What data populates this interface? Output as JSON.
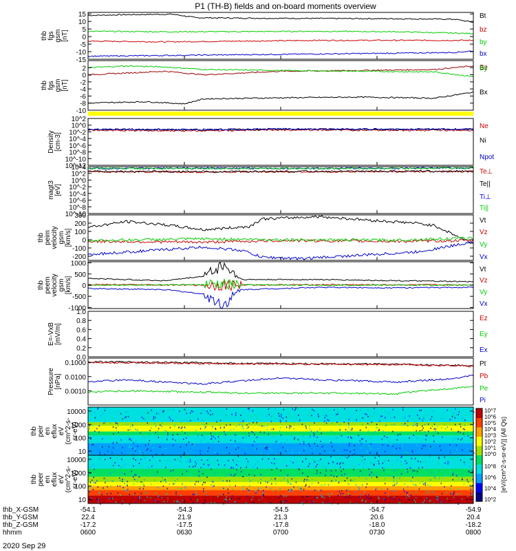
{
  "figure": {
    "title": "P1  (TH-B) fields and on-board moments overview",
    "date_label": "2020 Sep 29"
  },
  "time_axis": {
    "tick_labels": [
      "0600",
      "0630",
      "0700",
      "0730",
      "0800"
    ],
    "rows": [
      {
        "name": "thb_X-GSM",
        "values": [
          "-54.1",
          "-54.3",
          "-54.5",
          "-54.7",
          "-54.9"
        ]
      },
      {
        "name": "thb_Y-GSM",
        "values": [
          "22.4",
          "21.9",
          "21.3",
          "20.6",
          "20.4"
        ]
      },
      {
        "name": "thb_Z-GSM",
        "values": [
          "-17.2",
          "-17.5",
          "-17.8",
          "-18.0",
          "-18.2"
        ]
      },
      {
        "name": "hhmm",
        "values": [
          "0600",
          "0630",
          "0700",
          "0730",
          "0800"
        ]
      }
    ]
  },
  "colorbar": {
    "title": "[eV/(cm^2-s-sr-eV)] (All Qs)",
    "tick_labels_top": [
      "10^7",
      "10^6",
      "10^5",
      "10^4",
      "10^3",
      "10^2",
      "10^1",
      "10^0"
    ],
    "tick_labels_bottom": [
      "10^8",
      "10^6",
      "10^4",
      "10^2"
    ],
    "colors": [
      "#000080",
      "#0000ff",
      "#00a0ff",
      "#00e0e0",
      "#00e060",
      "#a0e000",
      "#ffff00",
      "#ffa000",
      "#ff4000",
      "#c00000"
    ]
  },
  "colors": {
    "black": "#000000",
    "red": "#cc0000",
    "green": "#00cc00",
    "blue": "#0000cc",
    "darkred": "#990000",
    "yellow": "#ffff00"
  },
  "chart_data": [
    {
      "type": "line",
      "ylabel": [
        "thb",
        "fgs",
        "gsm",
        "[nT]"
      ],
      "ylim": [
        -15,
        16
      ],
      "yticks": [
        15,
        10,
        5,
        0,
        -5,
        -10,
        -15
      ],
      "legend": [
        "Bt",
        "bz",
        "by",
        "bx"
      ],
      "series": [
        {
          "name": "Bt",
          "color": "#000000",
          "x": [
            0,
            0.1,
            0.22,
            0.28,
            0.4,
            0.6,
            0.8,
            0.95,
            1
          ],
          "y": [
            14,
            14.5,
            14.8,
            12.5,
            12.2,
            12.0,
            11.8,
            11.5,
            9.5
          ]
        },
        {
          "name": "bz",
          "color": "#cc0000",
          "x": [
            0,
            0.2,
            0.4,
            0.6,
            0.8,
            1
          ],
          "y": [
            -3,
            -3.5,
            -3,
            -2.5,
            -2.5,
            -2.5
          ]
        },
        {
          "name": "by",
          "color": "#00cc00",
          "x": [
            0,
            0.2,
            0.4,
            0.6,
            0.8,
            1
          ],
          "y": [
            3.5,
            3.2,
            3.3,
            3.5,
            3.2,
            2.0
          ]
        },
        {
          "name": "bx",
          "color": "#0000cc",
          "x": [
            0,
            0.2,
            0.4,
            0.6,
            0.8,
            0.95,
            1
          ],
          "y": [
            -13,
            -12.5,
            -12,
            -11.5,
            -11,
            -10.5,
            -9.5
          ]
        }
      ]
    },
    {
      "type": "line",
      "ylabel": [
        "thb",
        "fgs",
        "gsm",
        "[nT]"
      ],
      "ylim": [
        -10,
        4
      ],
      "yticks": [
        2,
        0,
        -2,
        -4,
        -6,
        -8,
        -10
      ],
      "legend": [
        "Bz",
        "By",
        "Bx"
      ],
      "series": [
        {
          "name": "Bz",
          "color": "#990000",
          "x": [
            0,
            0.1,
            0.2,
            0.3,
            0.5,
            0.7,
            0.9,
            1
          ],
          "y": [
            0,
            0.5,
            1,
            0,
            1,
            1.2,
            1.5,
            2.5
          ]
        },
        {
          "name": "By",
          "color": "#00cc00",
          "x": [
            0,
            0.1,
            0.2,
            0.3,
            0.5,
            0.7,
            0.9,
            1
          ],
          "y": [
            2,
            2.5,
            2.2,
            1.5,
            1.2,
            1,
            0.8,
            -0.5
          ]
        },
        {
          "name": "Bx",
          "color": "#000000",
          "x": [
            0,
            0.15,
            0.25,
            0.3,
            0.5,
            0.7,
            0.9,
            1
          ],
          "y": [
            -8,
            -7.6,
            -8.2,
            -6.8,
            -6.5,
            -6.3,
            -6.6,
            -4.9
          ]
        }
      ]
    },
    {
      "type": "line",
      "ylabel": [
        "Density",
        "[cm-3]"
      ],
      "yscale": "log",
      "ylim": [
        1e-12,
        100.0
      ],
      "yticks_labels": [
        "10^2",
        "10^0",
        "10^-2",
        "10^-4",
        "10^-6",
        "10^-8",
        "10^-10",
        "10^-12"
      ],
      "legend": [
        "Ne",
        "Ni",
        "Npot"
      ],
      "series": [
        {
          "name": "Ne",
          "color": "#cc0000",
          "x": [
            0,
            0.3,
            0.5,
            0.8,
            1
          ],
          "y": [
            0.03,
            0.02,
            0.04,
            0.03,
            0.03
          ]
        },
        {
          "name": "Ni",
          "color": "#000000",
          "x": [
            0,
            0.3,
            0.5,
            0.8,
            1
          ],
          "y": [
            0.05,
            0.04,
            0.06,
            0.05,
            0.05
          ]
        },
        {
          "name": "Npot",
          "color": "#0000cc",
          "x": [
            0,
            0.3,
            0.5,
            0.8,
            1
          ],
          "y": [
            0.06,
            0.05,
            0.07,
            0.06,
            0.06
          ]
        }
      ]
    },
    {
      "type": "line",
      "ylabel": [
        "magt3",
        "[eV]"
      ],
      "yscale": "log",
      "ylim": [
        1e-10,
        10000.0
      ],
      "yticks_labels": [
        "10^4",
        "10^2",
        "10^0",
        "10^-2",
        "10^-4",
        "10^-6",
        "10^-8",
        "10^-10"
      ],
      "legend": [
        "Te⊥",
        "Te||",
        "Ti⊥",
        "Ti||"
      ],
      "series": [
        {
          "name": "Te⊥",
          "color": "#cc0000",
          "x": [
            0,
            0.3,
            0.6,
            1
          ],
          "y": [
            300,
            250,
            300,
            350
          ]
        },
        {
          "name": "Te||",
          "color": "#000000",
          "x": [
            0,
            0.3,
            0.6,
            1
          ],
          "y": [
            400,
            350,
            400,
            450
          ]
        },
        {
          "name": "Ti⊥",
          "color": "#0000cc",
          "x": [
            0,
            0.3,
            0.6,
            1
          ],
          "y": [
            3000,
            3500,
            3000,
            4000
          ]
        },
        {
          "name": "Ti||",
          "color": "#00cc00",
          "x": [
            0,
            0.3,
            0.6,
            1
          ],
          "y": [
            2500,
            3000,
            2800,
            3500
          ]
        }
      ]
    },
    {
      "type": "line",
      "ylabel": [
        "thb",
        "peim",
        "velocity",
        "gsm",
        "[km/s]"
      ],
      "ylim": [
        -250,
        300
      ],
      "yticks": [
        300,
        200,
        100,
        0,
        -100,
        -200
      ],
      "legend": [
        "Vt",
        "Vz",
        "Vy",
        "Vx"
      ],
      "series": [
        {
          "name": "Vt",
          "color": "#000000",
          "x": [
            0,
            0.1,
            0.2,
            0.3,
            0.42,
            0.45,
            0.6,
            0.75,
            0.85,
            0.9,
            1
          ],
          "y": [
            150,
            220,
            180,
            120,
            160,
            250,
            280,
            230,
            200,
            170,
            -50
          ]
        },
        {
          "name": "Vz",
          "color": "#cc0000",
          "x": [
            0,
            0.3,
            0.5,
            0.8,
            1
          ],
          "y": [
            -20,
            -30,
            -10,
            -20,
            -10
          ]
        },
        {
          "name": "Vy",
          "color": "#00cc00",
          "x": [
            0,
            0.3,
            0.5,
            0.8,
            1
          ],
          "y": [
            -10,
            10,
            0,
            -5,
            20
          ]
        },
        {
          "name": "Vx",
          "color": "#0000cc",
          "x": [
            0,
            0.1,
            0.2,
            0.3,
            0.4,
            0.45,
            0.55,
            0.7,
            0.85,
            0.95,
            1
          ],
          "y": [
            -180,
            -150,
            -120,
            -90,
            -130,
            -210,
            -230,
            -190,
            -150,
            -70,
            -20
          ]
        }
      ]
    },
    {
      "type": "line",
      "ylabel": [
        "thb",
        "peem",
        "velocity",
        "gsm",
        "[km/s]"
      ],
      "ylim": [
        -1050,
        1050
      ],
      "yticks": [
        1000,
        500,
        0,
        -500,
        -1000
      ],
      "legend": [
        "Vt",
        "Vz",
        "Vy",
        "Vx"
      ],
      "series": [
        {
          "name": "Vt",
          "color": "#000000",
          "x": [
            0,
            0.2,
            0.3,
            0.35,
            0.4,
            0.6,
            0.8,
            1
          ],
          "y": [
            300,
            200,
            400,
            900,
            250,
            250,
            200,
            150
          ]
        },
        {
          "name": "Vz",
          "color": "#cc0000",
          "x": [
            0,
            0.3,
            0.6,
            1
          ],
          "y": [
            30,
            0,
            20,
            10
          ]
        },
        {
          "name": "Vy",
          "color": "#00cc00",
          "x": [
            0,
            0.3,
            0.6,
            1
          ],
          "y": [
            0,
            20,
            0,
            0
          ]
        },
        {
          "name": "Vx",
          "color": "#0000cc",
          "x": [
            0,
            0.2,
            0.3,
            0.35,
            0.4,
            0.6,
            0.8,
            1
          ],
          "y": [
            -150,
            -200,
            -400,
            -900,
            -200,
            -100,
            -120,
            -100
          ]
        }
      ]
    },
    {
      "type": "line",
      "ylabel": [
        "E=-VxB",
        "[mV/m]"
      ],
      "ylim": [
        0,
        1
      ],
      "yticks": [
        1.0,
        0.8,
        0.6,
        0.4,
        0.2,
        0.0
      ],
      "legend": [
        "Ez",
        "Ey",
        "Ex"
      ],
      "series": []
    },
    {
      "type": "line",
      "ylabel": [
        "Pressure",
        "[nPa]"
      ],
      "yscale": "log",
      "ylim": [
        0.0001,
        0.2
      ],
      "yticks_labels": [
        "0.1000",
        "0.0100",
        "0.0010"
      ],
      "legend": [
        "Pt",
        "Pb",
        "Pe",
        "Pi"
      ],
      "series": [
        {
          "name": "Pt",
          "color": "#000000",
          "x": [
            0,
            0.2,
            0.4,
            0.6,
            0.8,
            1
          ],
          "y": [
            0.11,
            0.1,
            0.085,
            0.08,
            0.075,
            0.06
          ]
        },
        {
          "name": "Pb",
          "color": "#cc0000",
          "x": [
            0,
            0.2,
            0.4,
            0.6,
            0.8,
            1
          ],
          "y": [
            0.1,
            0.09,
            0.08,
            0.075,
            0.07,
            0.055
          ]
        },
        {
          "name": "Pe",
          "color": "#00cc00",
          "x": [
            0,
            0.1,
            0.2,
            0.3,
            0.4,
            0.6,
            0.8,
            0.95,
            1
          ],
          "y": [
            0.0008,
            0.001,
            0.0009,
            0.0008,
            0.0007,
            0.0007,
            0.0006,
            0.0015,
            0.002
          ]
        },
        {
          "name": "Pi",
          "color": "#0000cc",
          "x": [
            0,
            0.1,
            0.2,
            0.3,
            0.4,
            0.5,
            0.6,
            0.8,
            0.95,
            1
          ],
          "y": [
            0.004,
            0.006,
            0.004,
            0.003,
            0.005,
            0.008,
            0.006,
            0.004,
            0.007,
            0.012
          ]
        }
      ]
    },
    {
      "type": "heatmap",
      "ylabel": [
        "thb",
        "peir",
        "en",
        "eflux",
        "eV",
        "(cm^2-s-",
        "sr-eV)"
      ],
      "yscale": "log",
      "ylim": [
        5,
        20000
      ],
      "yticks": [
        10000,
        1000,
        100,
        10
      ],
      "bands": [
        {
          "e_low": 5,
          "e_high": 40,
          "level": 2
        },
        {
          "e_low": 40,
          "e_high": 150,
          "level": 3
        },
        {
          "e_low": 150,
          "e_high": 300,
          "level": 4
        },
        {
          "e_low": 300,
          "e_high": 800,
          "level": 6
        },
        {
          "e_low": 800,
          "e_high": 1500,
          "level": 5
        },
        {
          "e_low": 1500,
          "e_high": 20000,
          "level": 3
        }
      ]
    },
    {
      "type": "heatmap",
      "ylabel": [
        "thb",
        "peer",
        "en",
        "eflux",
        "eV",
        "(cm^2-s-",
        "sr-eV)"
      ],
      "yscale": "log",
      "ylim": [
        5,
        20000
      ],
      "yticks": [
        10000,
        1000,
        100,
        10
      ],
      "bands": [
        {
          "e_low": 5,
          "e_high": 20,
          "level": 9
        },
        {
          "e_low": 20,
          "e_high": 50,
          "level": 8
        },
        {
          "e_low": 50,
          "e_high": 100,
          "level": 7
        },
        {
          "e_low": 100,
          "e_high": 200,
          "level": 6
        },
        {
          "e_low": 200,
          "e_high": 500,
          "level": 5
        },
        {
          "e_low": 500,
          "e_high": 2000,
          "level": 4
        },
        {
          "e_low": 2000,
          "e_high": 20000,
          "level": 3
        }
      ]
    }
  ]
}
